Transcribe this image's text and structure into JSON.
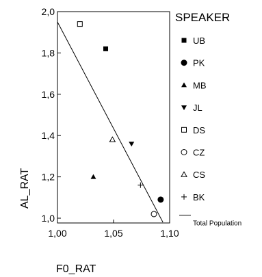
{
  "chart_data": {
    "type": "scatter",
    "xlabel": "F0_RAT",
    "ylabel": "AL_RAT",
    "xlim": [
      1.0,
      1.1
    ],
    "ylim": [
      0.98,
      2.0
    ],
    "x_ticks": [
      "1,00",
      "1,05",
      "1,10"
    ],
    "y_ticks": [
      "1,0",
      "1,2",
      "1,4",
      "1,6",
      "1,8",
      "2,0"
    ],
    "grid": false,
    "legend_position": "right",
    "legend_title": "SPEAKER",
    "series": [
      {
        "name": "UB",
        "marker": "filled-square",
        "x": [
          1.043
        ],
        "y": [
          1.82
        ]
      },
      {
        "name": "PK",
        "marker": "filled-circle",
        "x": [
          1.092
        ],
        "y": [
          1.09
        ]
      },
      {
        "name": "MB",
        "marker": "filled-triangle-up",
        "x": [
          1.032
        ],
        "y": [
          1.2
        ]
      },
      {
        "name": "JL",
        "marker": "filled-triangle-down",
        "x": [
          1.066
        ],
        "y": [
          1.36
        ]
      },
      {
        "name": "DS",
        "marker": "open-square",
        "x": [
          1.02
        ],
        "y": [
          1.94
        ]
      },
      {
        "name": "CZ",
        "marker": "open-circle",
        "x": [
          1.086
        ],
        "y": [
          1.02
        ]
      },
      {
        "name": "CS",
        "marker": "open-triangle-up",
        "x": [
          1.049
        ],
        "y": [
          1.38
        ]
      },
      {
        "name": "BK",
        "marker": "plus",
        "x": [
          1.074
        ],
        "y": [
          1.16
        ]
      }
    ],
    "fit_line": {
      "name": "Total Population",
      "x": [
        1.0,
        1.094
      ],
      "y": [
        1.95,
        0.98
      ]
    }
  }
}
